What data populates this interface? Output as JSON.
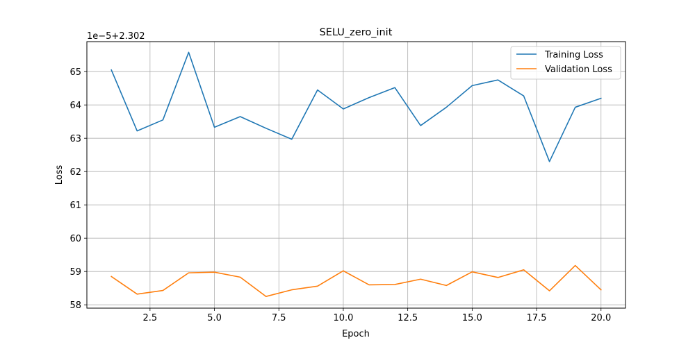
{
  "chart_data": {
    "type": "line",
    "title": "SELU_zero_init",
    "xlabel": "Epoch",
    "ylabel": "Loss",
    "offset_label": "1e−5+2.302",
    "x": [
      1,
      2,
      3,
      4,
      5,
      6,
      7,
      8,
      9,
      10,
      11,
      12,
      13,
      14,
      15,
      16,
      17,
      18,
      19,
      20
    ],
    "xlim": [
      0.05,
      20.95
    ],
    "ylim": [
      57.9,
      65.9
    ],
    "xticks": [
      2.5,
      5.0,
      7.5,
      10.0,
      12.5,
      15.0,
      17.5,
      20.0
    ],
    "xtick_labels": [
      "2.5",
      "5.0",
      "7.5",
      "10.0",
      "12.5",
      "15.0",
      "17.5",
      "20.0"
    ],
    "yticks": [
      58,
      59,
      60,
      61,
      62,
      63,
      64,
      65
    ],
    "ytick_labels": [
      "58",
      "59",
      "60",
      "61",
      "62",
      "63",
      "64",
      "65"
    ],
    "grid": true,
    "legend_position": "top-right",
    "series": [
      {
        "name": "Training Loss",
        "color": "#1f77b4",
        "values": [
          65.05,
          63.22,
          63.55,
          65.58,
          63.33,
          63.65,
          63.3,
          62.97,
          64.45,
          63.88,
          64.22,
          64.52,
          63.38,
          63.93,
          64.58,
          64.75,
          64.27,
          62.3,
          63.93,
          64.2
        ]
      },
      {
        "name": "Validation Loss",
        "color": "#ff7f0e",
        "values": [
          58.85,
          58.32,
          58.43,
          58.96,
          58.98,
          58.83,
          58.25,
          58.45,
          58.56,
          59.02,
          58.6,
          58.61,
          58.77,
          58.58,
          58.99,
          58.82,
          59.05,
          58.42,
          59.18,
          58.45
        ]
      }
    ]
  }
}
